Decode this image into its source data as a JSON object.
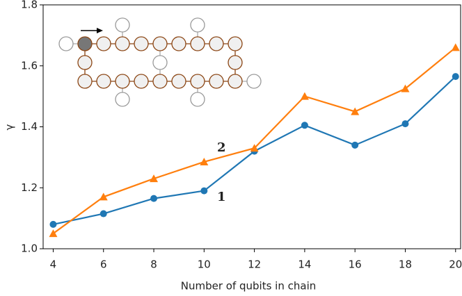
{
  "chart_data": {
    "type": "line",
    "xlabel": "Number of qubits in chain",
    "ylabel": "γ",
    "x": [
      4,
      6,
      8,
      10,
      12,
      14,
      16,
      18,
      20
    ],
    "series": [
      {
        "name": "1",
        "color": "#1f77b4",
        "marker": "circle",
        "values": [
          1.08,
          1.115,
          1.165,
          1.19,
          1.32,
          1.405,
          1.34,
          1.41,
          1.565
        ]
      },
      {
        "name": "2",
        "color": "#ff7f0e",
        "marker": "triangle",
        "values": [
          1.05,
          1.17,
          1.23,
          1.285,
          1.33,
          1.5,
          1.45,
          1.525,
          1.66
        ]
      }
    ],
    "xlim": [
      3.6,
      20.2
    ],
    "ylim": [
      1.0,
      1.8
    ],
    "xticks": [
      4,
      6,
      8,
      10,
      12,
      14,
      16,
      18,
      20
    ],
    "yticks": [
      {
        "value": 1.0,
        "label": "1.0"
      },
      {
        "value": 1.2,
        "label": "1.2"
      },
      {
        "value": 1.4,
        "label": "1.4"
      },
      {
        "value": 1.6,
        "label": "1.6"
      },
      {
        "value": 1.8,
        "label": "1.8"
      }
    ],
    "grid": false
  }
}
